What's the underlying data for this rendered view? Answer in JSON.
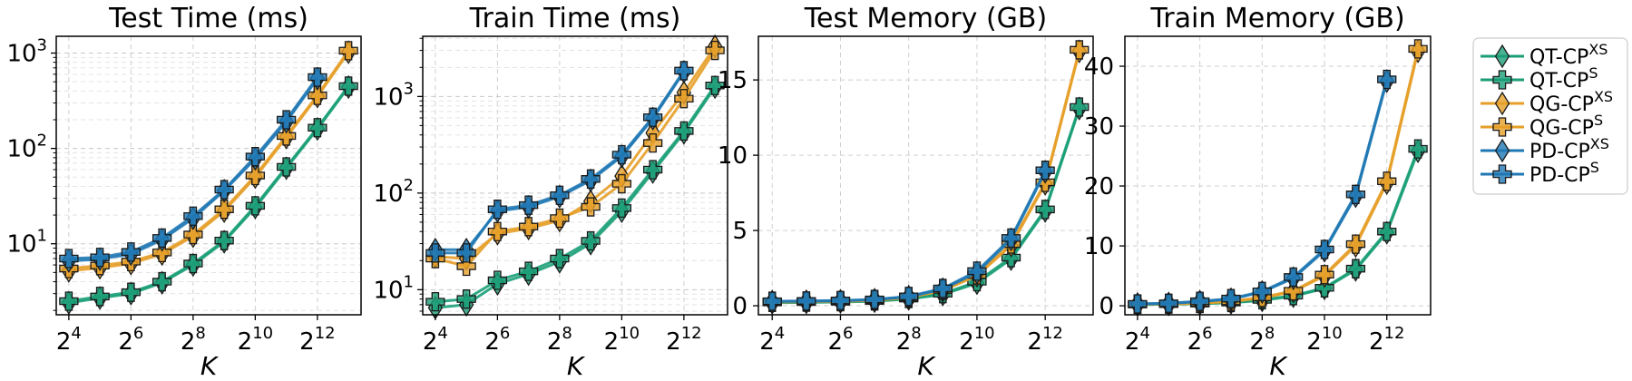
{
  "figure": {
    "legend_placement": "right",
    "series_styles": [
      {
        "name": "QT-CP",
        "name_sup": "XS",
        "color": "#1b9e77",
        "marker": "diamond"
      },
      {
        "name": "QT-CP",
        "name_sup": "S",
        "color": "#1b9e77",
        "marker": "plus"
      },
      {
        "name": "QG-CP",
        "name_sup": "XS",
        "color": "#e69f28",
        "marker": "diamond"
      },
      {
        "name": "QG-CP",
        "name_sup": "S",
        "color": "#e69f28",
        "marker": "plus"
      },
      {
        "name": "PD-CP",
        "name_sup": "XS",
        "color": "#1f78b4",
        "marker": "diamond"
      },
      {
        "name": "PD-CP",
        "name_sup": "S",
        "color": "#1f78b4",
        "marker": "plus"
      }
    ]
  },
  "chart_data": [
    {
      "type": "line",
      "title": "Test Time (ms)",
      "xlabel": "K",
      "ylabel": "",
      "x_scale": "log2",
      "y_scale": "log10",
      "grid": true,
      "x": [
        16,
        32,
        64,
        128,
        256,
        512,
        1024,
        2048,
        4096,
        8192
      ],
      "x_ticks": [
        {
          "base": "2",
          "exp": "4"
        },
        {
          "base": "2",
          "exp": "6"
        },
        {
          "base": "2",
          "exp": "8"
        },
        {
          "base": "2",
          "exp": "10"
        },
        {
          "base": "2",
          "exp": "12"
        }
      ],
      "y_ticks": [
        {
          "base": "10",
          "exp": "1"
        },
        {
          "base": "10",
          "exp": "2"
        },
        {
          "base": "10",
          "exp": "3"
        }
      ],
      "ylim": [
        1.8,
        1500
      ],
      "series": [
        {
          "values": [
            2.4,
            2.7,
            3.0,
            3.9,
            6.0,
            10.5,
            24,
            62,
            160,
            440
          ]
        },
        {
          "values": [
            2.5,
            2.8,
            3.1,
            4.0,
            6.2,
            10.8,
            25,
            64,
            165,
            450
          ]
        },
        {
          "values": [
            5.2,
            5.6,
            6.2,
            7.8,
            12,
            22,
            50,
            130,
            350,
            1020
          ]
        },
        {
          "values": [
            5.5,
            5.9,
            6.5,
            8.1,
            12.5,
            23,
            52,
            135,
            360,
            1060
          ]
        },
        {
          "values": [
            6.6,
            6.9,
            7.8,
            11,
            18.5,
            36,
            78,
            190,
            540,
            null
          ]
        },
        {
          "values": [
            7.0,
            7.2,
            8.2,
            11.5,
            19.5,
            37,
            82,
            200,
            560,
            null
          ]
        }
      ]
    },
    {
      "type": "line",
      "title": "Train Time (ms)",
      "xlabel": "K",
      "ylabel": "",
      "x_scale": "log2",
      "y_scale": "log10",
      "grid": true,
      "x": [
        16,
        32,
        64,
        128,
        256,
        512,
        1024,
        2048,
        4096,
        8192
      ],
      "x_ticks": [
        {
          "base": "2",
          "exp": "4"
        },
        {
          "base": "2",
          "exp": "6"
        },
        {
          "base": "2",
          "exp": "8"
        },
        {
          "base": "2",
          "exp": "10"
        },
        {
          "base": "2",
          "exp": "12"
        }
      ],
      "y_ticks": [
        {
          "base": "10",
          "exp": "1"
        },
        {
          "base": "10",
          "exp": "2"
        },
        {
          "base": "10",
          "exp": "3"
        }
      ],
      "ylim": [
        5.5,
        4200
      ],
      "series": [
        {
          "values": [
            6.5,
            7.0,
            11.5,
            14.5,
            19.5,
            30,
            65,
            165,
            420,
            1250
          ]
        },
        {
          "values": [
            7.5,
            8.0,
            12.5,
            15.5,
            21,
            32,
            70,
            175,
            440,
            1300
          ]
        },
        {
          "values": [
            22,
            21,
            38,
            43,
            52,
            82,
            150,
            420,
            1100,
            3300
          ]
        },
        {
          "values": [
            21,
            17.5,
            40,
            45,
            55,
            72,
            125,
            330,
            950,
            3000
          ]
        },
        {
          "values": [
            26,
            26,
            65,
            72,
            92,
            135,
            240,
            590,
            1800,
            null
          ]
        },
        {
          "values": [
            24,
            24,
            68,
            75,
            95,
            140,
            250,
            610,
            1850,
            null
          ]
        }
      ]
    },
    {
      "type": "line",
      "title": "Test Memory (GB)",
      "xlabel": "K",
      "ylabel": "",
      "x_scale": "log2",
      "y_scale": "linear",
      "grid": true,
      "x": [
        16,
        32,
        64,
        128,
        256,
        512,
        1024,
        2048,
        4096,
        8192
      ],
      "x_ticks": [
        {
          "base": "2",
          "exp": "4"
        },
        {
          "base": "2",
          "exp": "6"
        },
        {
          "base": "2",
          "exp": "8"
        },
        {
          "base": "2",
          "exp": "10"
        },
        {
          "base": "2",
          "exp": "12"
        }
      ],
      "y_ticks": [
        "0",
        "5",
        "10",
        "15"
      ],
      "ylim": [
        -0.6,
        17.9
      ],
      "series": [
        {
          "values": [
            0.2,
            0.22,
            0.25,
            0.3,
            0.45,
            0.75,
            1.5,
            3.1,
            6.3,
            13.1
          ]
        },
        {
          "values": [
            0.22,
            0.24,
            0.27,
            0.32,
            0.48,
            0.8,
            1.6,
            3.2,
            6.4,
            13.2
          ]
        },
        {
          "values": [
            0.25,
            0.27,
            0.3,
            0.35,
            0.55,
            1.0,
            2.0,
            4.0,
            8.1,
            16.9
          ]
        },
        {
          "values": [
            0.26,
            0.28,
            0.31,
            0.36,
            0.57,
            1.05,
            2.05,
            4.1,
            8.2,
            17.0
          ]
        },
        {
          "values": [
            0.28,
            0.3,
            0.33,
            0.4,
            0.6,
            1.1,
            2.2,
            4.4,
            8.9,
            null
          ]
        },
        {
          "values": [
            0.3,
            0.32,
            0.35,
            0.42,
            0.62,
            1.15,
            2.3,
            4.5,
            9.0,
            null
          ]
        }
      ]
    },
    {
      "type": "line",
      "title": "Train Memory (GB)",
      "xlabel": "K",
      "ylabel": "",
      "x_scale": "log2",
      "y_scale": "linear",
      "grid": true,
      "x": [
        16,
        32,
        64,
        128,
        256,
        512,
        1024,
        2048,
        4096,
        8192
      ],
      "x_ticks": [
        {
          "base": "2",
          "exp": "4"
        },
        {
          "base": "2",
          "exp": "6"
        },
        {
          "base": "2",
          "exp": "8"
        },
        {
          "base": "2",
          "exp": "10"
        },
        {
          "base": "2",
          "exp": "12"
        }
      ],
      "y_ticks": [
        "0",
        "10",
        "20",
        "30",
        "40"
      ],
      "ylim": [
        -1.5,
        45
      ],
      "series": [
        {
          "values": [
            0.2,
            0.25,
            0.35,
            0.5,
            0.9,
            1.6,
            2.9,
            6.0,
            12.2,
            25.8
          ]
        },
        {
          "values": [
            0.22,
            0.28,
            0.38,
            0.55,
            1.0,
            1.7,
            3.0,
            6.2,
            12.4,
            26.2
          ]
        },
        {
          "values": [
            0.25,
            0.3,
            0.45,
            0.7,
            1.3,
            2.4,
            5.0,
            10.0,
            20.5,
            42.5
          ]
        },
        {
          "values": [
            0.27,
            0.33,
            0.48,
            0.75,
            1.4,
            2.5,
            5.2,
            10.3,
            20.8,
            42.9
          ]
        },
        {
          "values": [
            0.3,
            0.4,
            0.7,
            1.1,
            2.3,
            4.6,
            9.2,
            18.3,
            37.5,
            null
          ]
        },
        {
          "values": [
            0.32,
            0.42,
            0.75,
            1.2,
            2.4,
            4.8,
            9.4,
            18.6,
            37.8,
            null
          ]
        }
      ]
    }
  ]
}
